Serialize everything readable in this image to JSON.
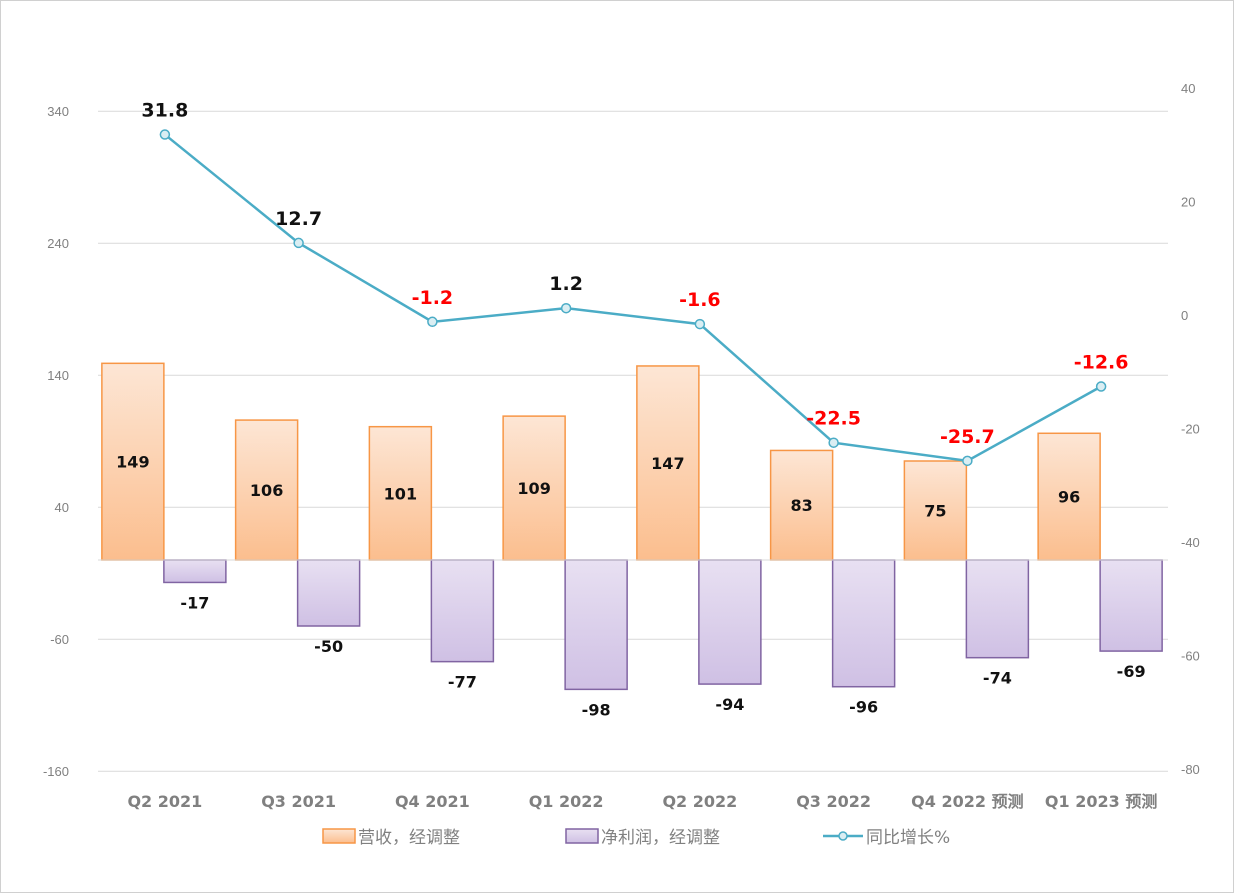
{
  "chart_data": {
    "type": "bar",
    "categories": [
      "Q2 2021",
      "Q3 2021",
      "Q4 2021",
      "Q1 2022",
      "Q2 2022",
      "Q3 2022",
      "Q4 2022 预测",
      "Q1 2023 预测"
    ],
    "series": [
      {
        "name": "营收，经调整",
        "type": "bar",
        "axis": "left",
        "values": [
          149,
          106,
          101,
          109,
          147,
          83,
          75,
          96
        ],
        "color": "#F79646"
      },
      {
        "name": "净利润，经调整",
        "type": "bar",
        "axis": "left",
        "values": [
          -17,
          -50,
          -77,
          -98,
          -94,
          -96,
          -74,
          -69
        ],
        "color": "#8064A2"
      },
      {
        "name": "同比增长%",
        "type": "line",
        "axis": "right",
        "values": [
          31.8,
          12.7,
          -1.2,
          1.2,
          -1.6,
          -22.5,
          -25.7,
          -12.6
        ],
        "color": "#4BACC6"
      }
    ],
    "left_axis": {
      "ticks": [
        340,
        240,
        140,
        40,
        -60,
        -160
      ],
      "range": [
        -160,
        357
      ]
    },
    "right_axis": {
      "ticks": [
        40,
        20,
        0,
        -20,
        -40,
        -60,
        -80
      ],
      "range": [
        -80,
        40
      ]
    },
    "negative_label_color": "#FF0000",
    "grid": true,
    "legend": "bottom"
  }
}
